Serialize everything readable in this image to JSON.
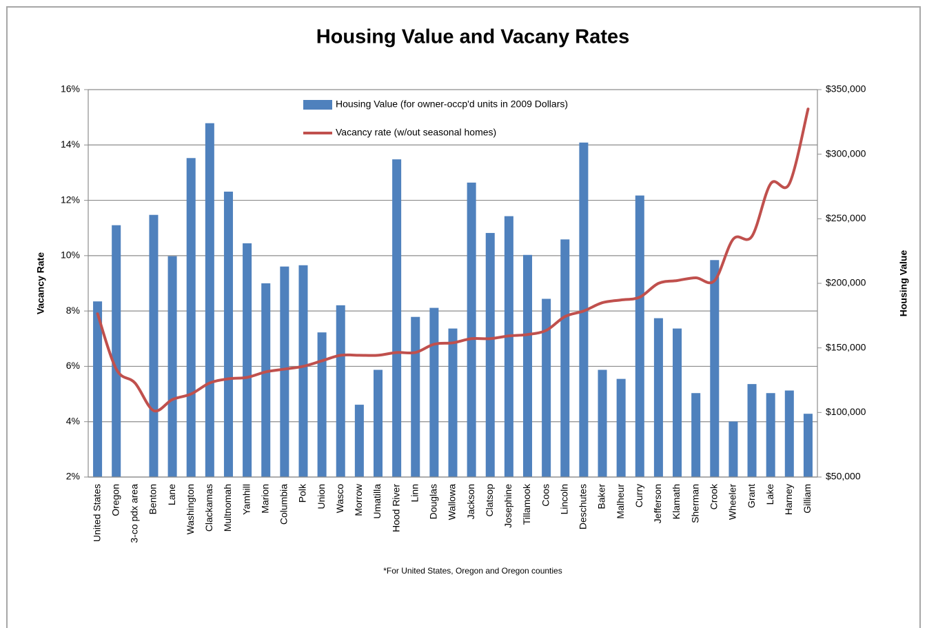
{
  "chart_data": {
    "type": "combo",
    "title": "Housing Value and Vacany Rates",
    "ylabel": "Vacancy  Rate",
    "y2label": "Housing Value",
    "footnote": "*For United States, Oregon and Oregon counties",
    "categories": [
      "United States",
      "Oregon",
      "3-co pdx area",
      "Benton",
      "Lane",
      "Washington",
      "Clackamas",
      "Multnomah",
      "Yamhill",
      "Marion",
      "Columbia",
      "Polk",
      "Union",
      "Wasco",
      "Morrow",
      "Umatilla",
      "Hood River",
      "Linn",
      "Douglas",
      "Wallowa",
      "Jackson",
      "Clatsop",
      "Josephine",
      "Tillamook",
      "Coos",
      "Lincoln",
      "Deschutes",
      "Baker",
      "Malheur",
      "Curry",
      "Jefferson",
      "Klamath",
      "Sherman",
      "Crook",
      "Wheeler",
      "Grant",
      "Lake",
      "Harney",
      "Gilliam"
    ],
    "series": [
      {
        "name": "Housing Value  (for owner-occp'd units in 2009 Dollars)",
        "type": "bar",
        "axis": "y2",
        "color": "#4f81bd",
        "values": [
          186000,
          245000,
          null,
          253000,
          221000,
          297000,
          324000,
          271000,
          231000,
          200000,
          213000,
          214000,
          162000,
          183000,
          106000,
          133000,
          296000,
          174000,
          181000,
          165000,
          278000,
          239000,
          252000,
          222000,
          188000,
          234000,
          309000,
          133000,
          126000,
          268000,
          173000,
          165000,
          115000,
          218000,
          93000,
          122000,
          115000,
          117000,
          99000
        ]
      },
      {
        "name": "Vacancy rate (w/out seasonal homes)",
        "type": "line",
        "axis": "y",
        "color": "#c0504d",
        "values": [
          7.9,
          5.9,
          5.4,
          4.4,
          4.8,
          5.0,
          5.4,
          5.55,
          5.6,
          5.8,
          5.9,
          6.0,
          6.2,
          6.4,
          6.4,
          6.4,
          6.5,
          6.5,
          6.8,
          6.85,
          7.0,
          7.0,
          7.1,
          7.15,
          7.3,
          7.8,
          8.0,
          8.3,
          8.4,
          8.5,
          9.0,
          9.1,
          9.2,
          9.1,
          10.6,
          10.7,
          12.6,
          12.6,
          15.3
        ]
      }
    ],
    "ylim": [
      2,
      16
    ],
    "yticks": [
      {
        "value": 2,
        "label": "2%"
      },
      {
        "value": 4,
        "label": "4%"
      },
      {
        "value": 6,
        "label": "6%"
      },
      {
        "value": 8,
        "label": "8%"
      },
      {
        "value": 10,
        "label": "10%"
      },
      {
        "value": 12,
        "label": "12%"
      },
      {
        "value": 14,
        "label": "14%"
      },
      {
        "value": 16,
        "label": "16%"
      }
    ],
    "y2lim": [
      50000,
      350000
    ],
    "y2ticks": [
      {
        "value": 50000,
        "label": "$50,000"
      },
      {
        "value": 100000,
        "label": "$100,000"
      },
      {
        "value": 150000,
        "label": "$150,000"
      },
      {
        "value": 200000,
        "label": "$200,000"
      },
      {
        "value": 250000,
        "label": "$250,000"
      },
      {
        "value": 300000,
        "label": "$300,000"
      },
      {
        "value": 350000,
        "label": "$350,000"
      }
    ],
    "grid": true
  }
}
